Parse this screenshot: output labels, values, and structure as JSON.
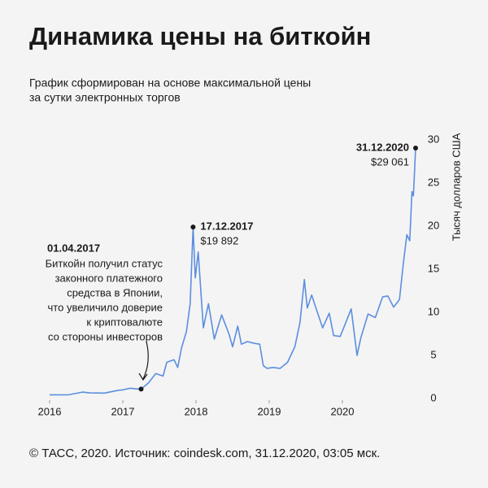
{
  "chart_data": {
    "type": "line",
    "title": "Динамика цены на биткойн",
    "subtitle": [
      "График сформирован на основе максимальной цены",
      "за сутки электронных торгов"
    ],
    "y_label": "Тысяч долларов США",
    "source": "© ТАСС, 2020. Источник: coindesk.com, 31.12.2020, 03:05 мск.",
    "color": "#5b8fe0",
    "xlim": [
      2016,
      2021
    ],
    "xticks": [
      2016,
      2017,
      2018,
      2019,
      2020
    ],
    "ylim": [
      0,
      30
    ],
    "yticks": [
      0,
      5,
      10,
      15,
      20,
      25,
      30
    ],
    "x": [
      2016.0,
      2016.25,
      2016.45,
      2016.55,
      2016.75,
      2016.95,
      2017.0,
      2017.1,
      2017.2,
      2017.25,
      2017.35,
      2017.45,
      2017.55,
      2017.6,
      2017.7,
      2017.75,
      2017.8,
      2017.87,
      2017.92,
      2017.96,
      2017.99,
      2018.03,
      2018.1,
      2018.17,
      2018.25,
      2018.35,
      2018.45,
      2018.5,
      2018.57,
      2018.62,
      2018.7,
      2018.8,
      2018.87,
      2018.92,
      2018.97,
      2019.05,
      2019.15,
      2019.25,
      2019.35,
      2019.42,
      2019.48,
      2019.52,
      2019.58,
      2019.65,
      2019.73,
      2019.82,
      2019.88,
      2019.97,
      2020.05,
      2020.12,
      2020.2,
      2020.25,
      2020.35,
      2020.45,
      2020.55,
      2020.62,
      2020.7,
      2020.78,
      2020.83,
      2020.88,
      2020.92,
      2020.95,
      2020.97,
      2021.0
    ],
    "values": [
      0.43,
      0.42,
      0.75,
      0.65,
      0.63,
      0.97,
      1.0,
      1.2,
      1.1,
      1.1,
      1.8,
      2.9,
      2.6,
      4.2,
      4.5,
      3.6,
      5.8,
      7.8,
      11,
      19.892,
      14,
      17,
      8.2,
      11,
      6.9,
      9.7,
      7.5,
      6.0,
      8.4,
      6.3,
      6.6,
      6.4,
      6.3,
      3.8,
      3.5,
      3.6,
      3.5,
      4.2,
      6.0,
      8.8,
      13.8,
      10.5,
      12.0,
      10.2,
      8.2,
      9.9,
      7.3,
      7.2,
      8.9,
      10.4,
      5.0,
      7.0,
      9.8,
      9.4,
      11.8,
      11.9,
      10.6,
      11.5,
      15.5,
      19.0,
      18.3,
      24.0,
      23.5,
      29.061
    ],
    "annotations": [
      {
        "x": 2021.0,
        "y": 29.061,
        "date": "31.12.2020",
        "value_label": "$29 061"
      },
      {
        "x": 2017.96,
        "y": 19.892,
        "date": "17.12.2017",
        "value_label": "$19 892"
      },
      {
        "x": 2017.25,
        "y": 1.1,
        "date": "01.04.2017",
        "text": [
          "Биткойн получил статус",
          "законного платежного",
          "средства в Японии,",
          "что увеличило доверие",
          "к криптовалюте",
          "со стороны инвесторов"
        ]
      }
    ]
  }
}
